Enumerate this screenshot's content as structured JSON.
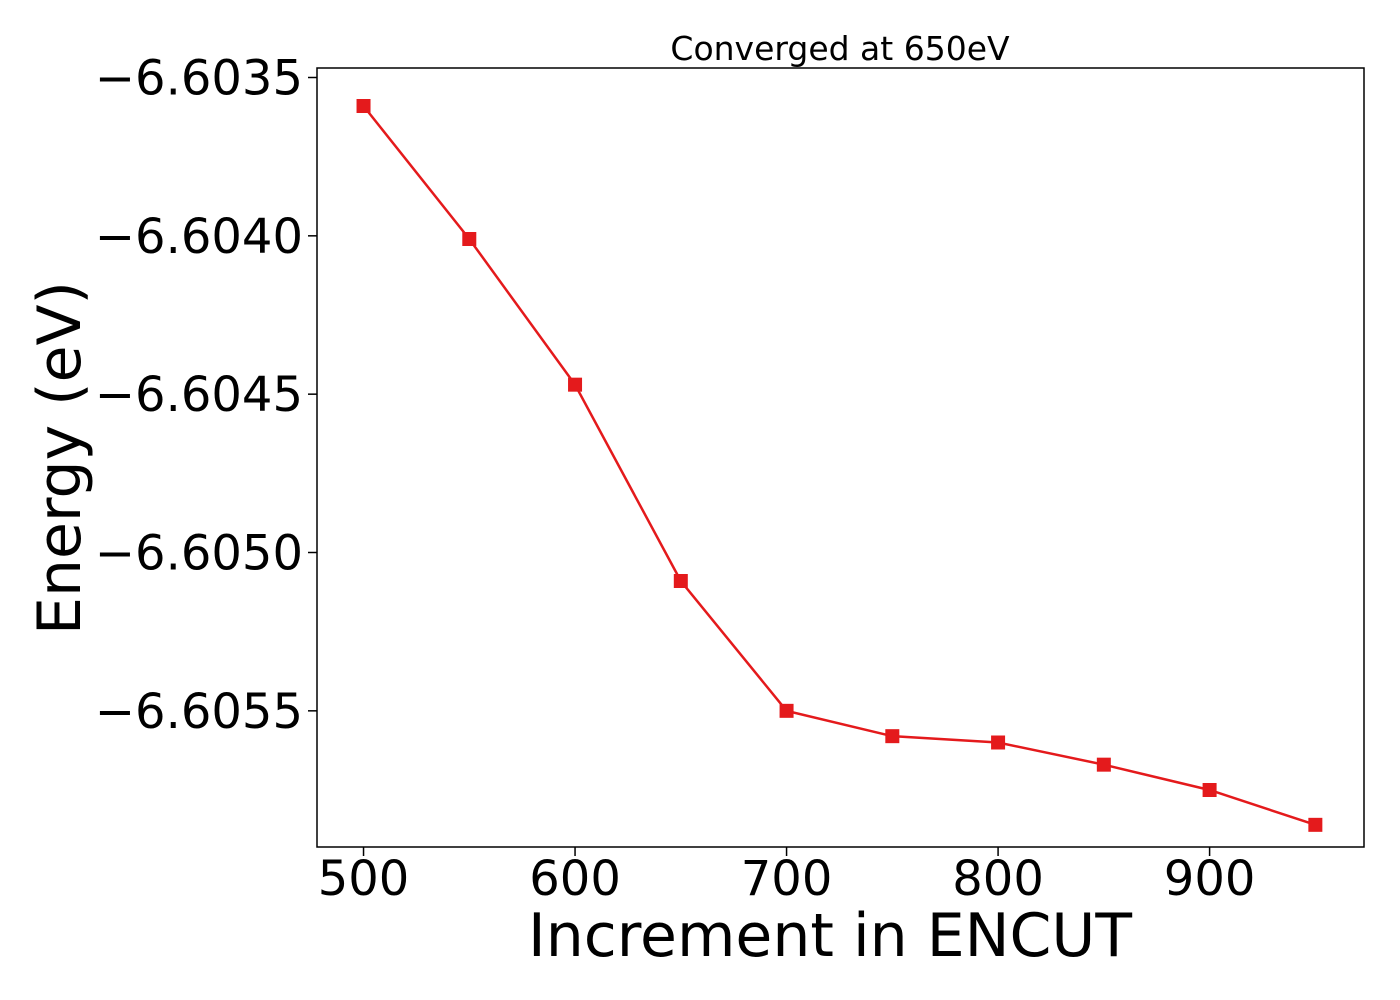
{
  "chart_data": {
    "type": "line",
    "title": "Converged at 650eV",
    "xlabel": "Increment in ENCUT",
    "ylabel": "Energy (eV)",
    "x": [
      500,
      550,
      600,
      650,
      700,
      750,
      800,
      850,
      900,
      950
    ],
    "series": [
      {
        "values": [
          -6.60359,
          -6.60401,
          -6.60447,
          -6.60509,
          -6.6055,
          -6.60558,
          -6.6056,
          -6.60567,
          -6.60575,
          -6.60586
        ],
        "color": "#e41a1c",
        "marker": "square"
      }
    ],
    "xlim": [
      478,
      973
    ],
    "ylim": [
      -6.60593,
      -6.60347
    ],
    "xticks": [
      500,
      600,
      700,
      800,
      900
    ],
    "xtick_labels": [
      "500",
      "600",
      "700",
      "800",
      "900"
    ],
    "yticks": [
      -6.6035,
      -6.604,
      -6.6045,
      -6.605,
      -6.6055
    ],
    "ytick_labels": [
      "−6.6035",
      "−6.6040",
      "−6.6045",
      "−6.6050",
      "−6.6055"
    ],
    "grid": false
  }
}
